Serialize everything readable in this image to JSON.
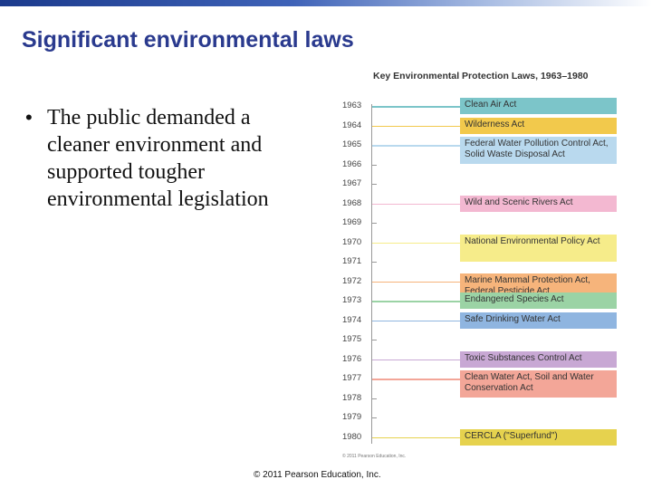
{
  "slide": {
    "title": "Significant environmental laws",
    "bullet": "The public demanded a cleaner environment and supported tougher environmental legislation",
    "copyright": "© 2011 Pearson Education, Inc."
  },
  "figure": {
    "title": "Key Environmental Protection Laws, 1963–1980",
    "credit": "© 2011 Pearson Education, Inc.",
    "years": [
      "1963",
      "1964",
      "1965",
      "1966",
      "1967",
      "1968",
      "1969",
      "1970",
      "1971",
      "1972",
      "1973",
      "1974",
      "1975",
      "1976",
      "1977",
      "1978",
      "1979",
      "1980"
    ],
    "laws": [
      {
        "year": "1963",
        "label": "Clean Air Act",
        "color": "#7cc5c9"
      },
      {
        "year": "1964",
        "label": "Wilderness Act",
        "color": "#f2c94c"
      },
      {
        "year": "1965",
        "label": "Federal Water Pollution Control Act, Solid Waste Disposal Act",
        "color": "#b9d9ee"
      },
      {
        "year": "1968",
        "label": "Wild and Scenic Rivers Act",
        "color": "#f3b8d1"
      },
      {
        "year": "1970",
        "label": "National Environmental Policy Act",
        "color": "#f6ec8a"
      },
      {
        "year": "1972",
        "label": "Marine Mammal Protection Act, Federal Pesticide Act",
        "color": "#f6b47b"
      },
      {
        "year": "1973",
        "label": "Endangered Species Act",
        "color": "#9bd3a5"
      },
      {
        "year": "1974",
        "label": "Safe Drinking Water Act",
        "color": "#8fb5e0"
      },
      {
        "year": "1976",
        "label": "Toxic Substances Control Act",
        "color": "#c8a8d4"
      },
      {
        "year": "1977",
        "label": "Clean Water Act, Soil and Water Conservation Act",
        "color": "#f3a698"
      },
      {
        "year": "1980",
        "label": "CERCLA (\"Superfund\")",
        "color": "#e6d24e"
      }
    ]
  }
}
